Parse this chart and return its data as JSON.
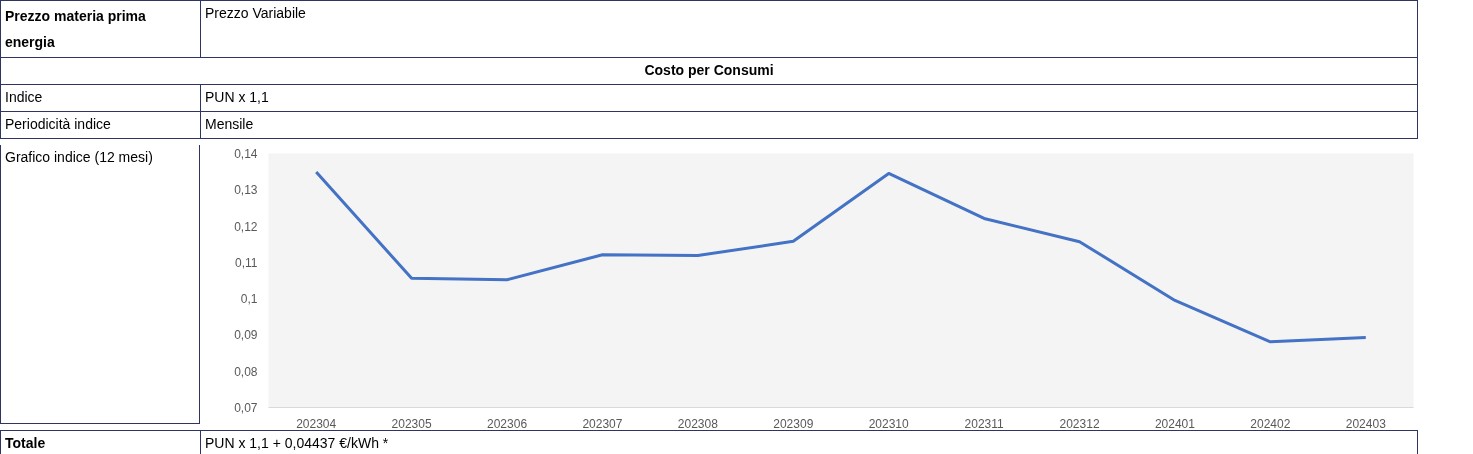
{
  "chart_data": {
    "type": "line",
    "categories": [
      "202304",
      "202305",
      "202306",
      "202307",
      "202308",
      "202309",
      "202310",
      "202311",
      "202312",
      "202401",
      "202402",
      "202403"
    ],
    "series": [
      {
        "color": "#4472c4",
        "values": [
          0.1349,
          0.1056,
          0.1052,
          0.1121,
          0.1119,
          0.1158,
          0.1345,
          0.1221,
          0.1157,
          0.0995,
          0.0881,
          0.0893
        ]
      }
    ],
    "ylim": [
      0.07,
      0.14
    ],
    "yticks": [
      {
        "value": 0.07,
        "label": "0,07"
      },
      {
        "value": 0.08,
        "label": "0,08"
      },
      {
        "value": 0.09,
        "label": "0,09"
      },
      {
        "value": 0.1,
        "label": "0,1"
      },
      {
        "value": 0.11,
        "label": "0,11"
      },
      {
        "value": 0.12,
        "label": "0,12"
      },
      {
        "value": 0.13,
        "label": "0,13"
      },
      {
        "value": 0.14,
        "label": "0,14"
      }
    ],
    "grid": false,
    "marker": "none",
    "line_style": "solid",
    "annotations": [
      "Prezzo materia prima energia",
      "Prezzo Variabile",
      "Costo per Consumi",
      "Indice",
      "PUN x 1,1",
      "Periodicità indice",
      "Mensile",
      "Grafico indice (12 mesi)",
      "Totale",
      "PUN x 1,1 + 0,04437 €/kWh *"
    ]
  }
}
